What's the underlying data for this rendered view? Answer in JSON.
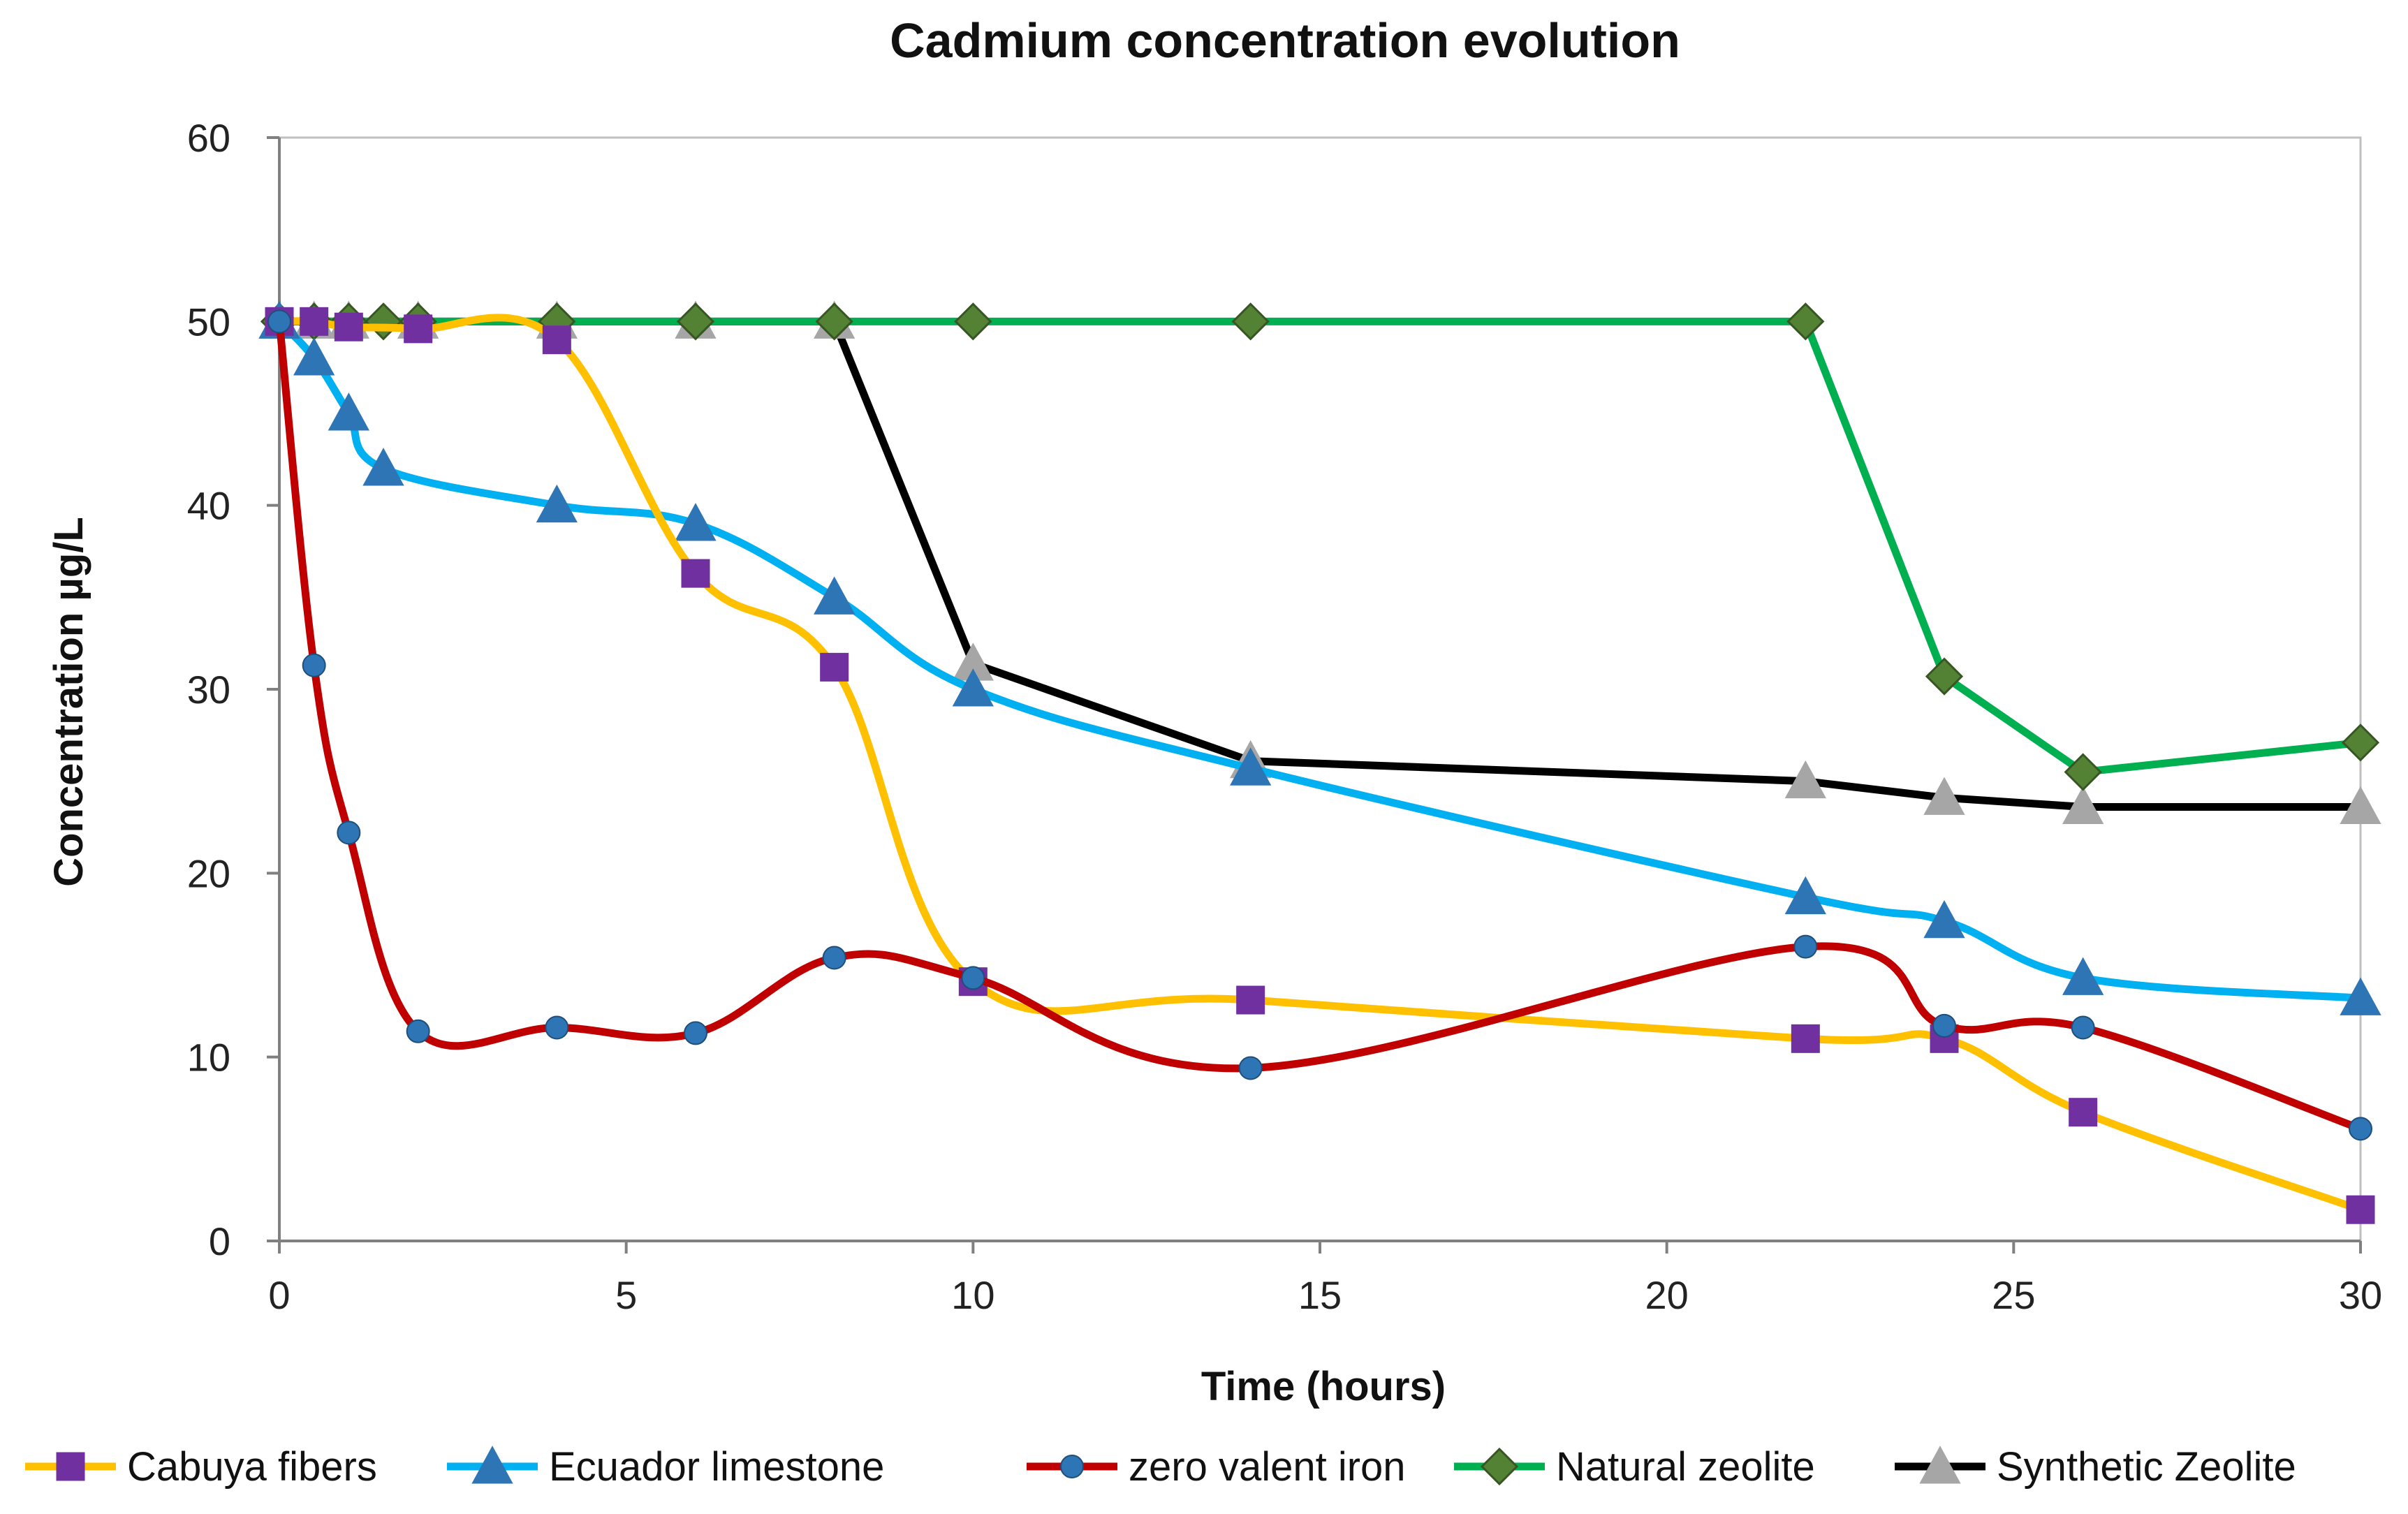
{
  "chart_data": {
    "type": "line",
    "title": "Cadmium concentration evolution",
    "xlabel": "Time (hours)",
    "ylabel": "Concentration  µg/L",
    "xlim": [
      0,
      30
    ],
    "ylim": [
      0,
      60
    ],
    "xticks": [
      0,
      5,
      10,
      15,
      20,
      25,
      30
    ],
    "yticks": [
      0,
      10,
      20,
      30,
      40,
      50,
      60
    ],
    "grid": false,
    "legend_position": "bottom",
    "series": [
      {
        "name": "Cabuya fibers",
        "color": "#FFC000",
        "marker": "square",
        "marker_color": "#7030A0",
        "x": [
          0,
          0.5,
          1,
          2,
          4,
          6,
          8,
          10,
          14,
          22,
          24,
          26,
          30
        ],
        "y": [
          50,
          50,
          49.7,
          49.6,
          49,
          36.3,
          31.2,
          14.1,
          13.1,
          11,
          11,
          7,
          1.7
        ]
      },
      {
        "name": "Ecuador limestone",
        "color": "#00B0F0",
        "marker": "triangle",
        "marker_color": "#2E75B6",
        "x": [
          0,
          0.5,
          1,
          1.5,
          4,
          6,
          8,
          10,
          14,
          22,
          24,
          26,
          30
        ],
        "y": [
          50,
          48,
          45,
          42,
          40,
          39,
          35,
          30,
          25.7,
          18.7,
          17.4,
          14.3,
          13.2
        ]
      },
      {
        "name": "zero valent iron",
        "color": "#C00000",
        "marker": "circle",
        "marker_color": "#2E75B6",
        "x": [
          0,
          0.5,
          1,
          2,
          4,
          6,
          8,
          10,
          14,
          22,
          24,
          26,
          30
        ],
        "y": [
          50,
          31.3,
          22.2,
          11.4,
          11.6,
          11.3,
          15.4,
          14.3,
          9.4,
          16,
          11.7,
          11.6,
          6.1
        ]
      },
      {
        "name": "Natural zeolite",
        "color": "#00B050",
        "marker": "diamond",
        "marker_color": "#548235",
        "x": [
          0,
          0.5,
          1,
          1.5,
          2,
          4,
          6,
          8,
          10,
          14,
          22,
          24,
          26,
          30
        ],
        "y": [
          50,
          50,
          50,
          50,
          50,
          50,
          50,
          50,
          50,
          50,
          50,
          30.7,
          25.5,
          27.1
        ]
      },
      {
        "name": "Synthetic Zeolite",
        "color": "#000000",
        "marker": "triangle",
        "marker_color": "#A6A6A6",
        "x": [
          0,
          0.5,
          1,
          2,
          4,
          6,
          8,
          10,
          14,
          22,
          24,
          26,
          30
        ],
        "y": [
          50,
          50,
          50,
          50,
          50,
          50,
          50,
          31.4,
          26.1,
          25,
          24.1,
          23.6,
          23.6
        ]
      }
    ]
  }
}
